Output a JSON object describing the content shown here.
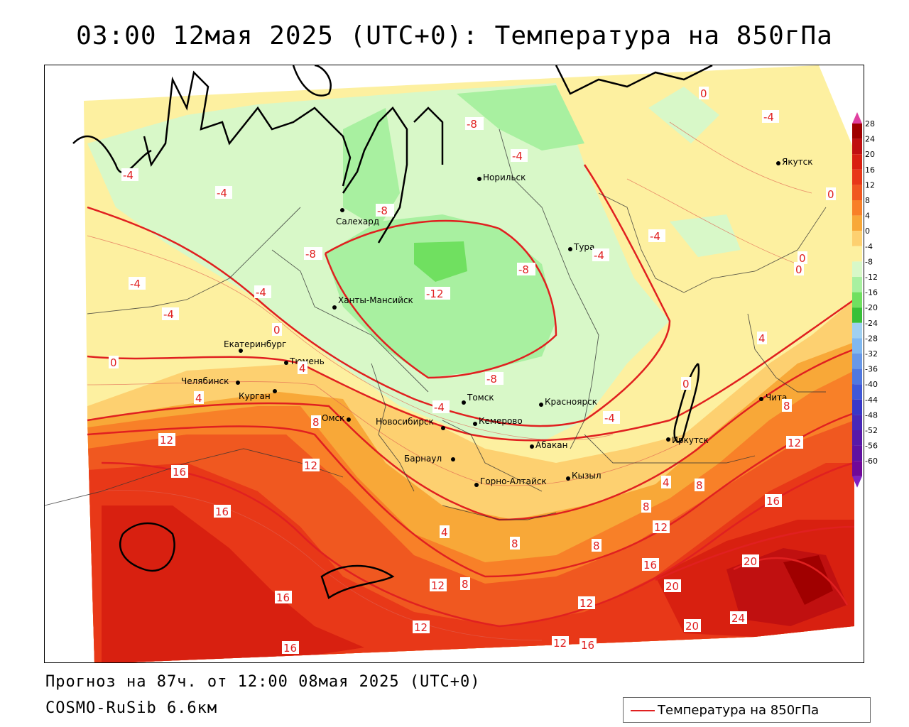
{
  "title": "03:00 12мая 2025 (UTC+0): Температура на 850гПа",
  "footer": {
    "forecast": "Прогноз на 87ч. от 12:00 08мая 2025 (UTC+0)",
    "model": "COSMO-RuSib 6.6км"
  },
  "legend": {
    "line_label": "Температура на 850гПа",
    "line_color": "#e02020"
  },
  "colorbar": {
    "labels": [
      "28",
      "24",
      "20",
      "16",
      "12",
      "8",
      "4",
      "0",
      "-4",
      "-8",
      "-12",
      "-16",
      "-20",
      "-24",
      "-28",
      "-32",
      "-36",
      "-40",
      "-44",
      "-48",
      "-52",
      "-56",
      "-60"
    ],
    "colors": [
      "#a00000",
      "#c01010",
      "#d82010",
      "#e83818",
      "#f05820",
      "#f88028",
      "#f8a838",
      "#fdd070",
      "#fdf0a0",
      "#d8f8c8",
      "#a8f0a0",
      "#70e060",
      "#38c038",
      "#a0d0f0",
      "#80b8f0",
      "#6898e8",
      "#5078e0",
      "#4058d8",
      "#3838c8",
      "#4828b8",
      "#5818a8",
      "#6010a0",
      "#700898"
    ]
  },
  "cities": [
    {
      "name": "Якутск"
    },
    {
      "name": "Норильск"
    },
    {
      "name": "Салехард"
    },
    {
      "name": "Тура"
    },
    {
      "name": "Ханты-Мансийск"
    },
    {
      "name": "Екатеринбург"
    },
    {
      "name": "Тюмень"
    },
    {
      "name": "Челябинск"
    },
    {
      "name": "Курган"
    },
    {
      "name": "Омск"
    },
    {
      "name": "Новосибирск"
    },
    {
      "name": "Томск"
    },
    {
      "name": "Кемерово"
    },
    {
      "name": "Красноярск"
    },
    {
      "name": "Абакан"
    },
    {
      "name": "Барнаул"
    },
    {
      "name": "Горно-Алтайск"
    },
    {
      "name": "Кызыл"
    },
    {
      "name": "Иркутск"
    },
    {
      "name": "Чита"
    }
  ],
  "isotherm_labels": [
    "-4",
    "-8",
    "-12",
    "0",
    "4",
    "8",
    "12",
    "16",
    "20",
    "24"
  ]
}
